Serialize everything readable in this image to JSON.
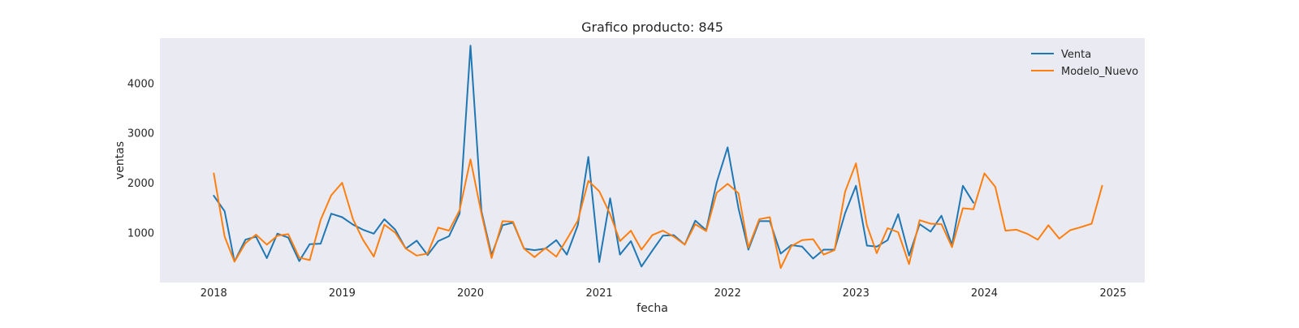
{
  "chart_data": {
    "type": "line",
    "title": "Grafico producto: 845",
    "xlabel": "fecha",
    "ylabel": "ventas",
    "grid": false,
    "legend_position": "top-right",
    "background_color": "#eaeaf2",
    "xlim": [
      "2017-08-01",
      "2025-04-01"
    ],
    "ylim": [
      0,
      4900
    ],
    "x_ticks": [
      "2018-01-01",
      "2019-01-01",
      "2020-01-01",
      "2021-01-01",
      "2022-01-01",
      "2023-01-01",
      "2024-01-01",
      "2025-01-01"
    ],
    "x_tick_labels": [
      "2018",
      "2019",
      "2020",
      "2021",
      "2022",
      "2023",
      "2024",
      "2025"
    ],
    "y_ticks": [
      1000,
      2000,
      3000,
      4000
    ],
    "y_tick_labels": [
      "1000",
      "2000",
      "3000",
      "4000"
    ],
    "start": "2018-01",
    "series": [
      {
        "name": "Venta",
        "color": "#1f77b4",
        "values": [
          1740,
          1430,
          420,
          860,
          920,
          490,
          980,
          900,
          430,
          770,
          780,
          1380,
          1310,
          1160,
          1060,
          980,
          1270,
          1060,
          680,
          840,
          550,
          830,
          930,
          1380,
          4750,
          1430,
          550,
          1150,
          1200,
          680,
          650,
          680,
          850,
          560,
          1150,
          2520,
          410,
          1690,
          560,
          830,
          320,
          640,
          940,
          950,
          760,
          1240,
          1050,
          2010,
          2710,
          1490,
          660,
          1230,
          1230,
          580,
          750,
          720,
          480,
          660,
          660,
          1390,
          1940,
          740,
          720,
          850,
          1370,
          540,
          1170,
          1020,
          1340,
          750,
          1940,
          1600
        ]
      },
      {
        "name": "Modelo_Nuevo",
        "color": "#ff7f0e",
        "values": [
          2190,
          920,
          420,
          790,
          960,
          760,
          940,
          970,
          500,
          450,
          1260,
          1750,
          2000,
          1270,
          860,
          520,
          1160,
          1000,
          680,
          540,
          580,
          1100,
          1040,
          1450,
          2470,
          1380,
          490,
          1230,
          1220,
          680,
          510,
          690,
          520,
          870,
          1240,
          2040,
          1830,
          1370,
          830,
          1040,
          660,
          950,
          1040,
          920,
          760,
          1170,
          1030,
          1800,
          1980,
          1790,
          700,
          1270,
          1310,
          290,
          730,
          850,
          870,
          560,
          650,
          1820,
          2390,
          1150,
          590,
          1090,
          1010,
          370,
          1250,
          1180,
          1170,
          710,
          1490,
          1470,
          2190,
          1920,
          1040,
          1060,
          980,
          860,
          1150,
          880,
          1050,
          1110,
          1180,
          1940
        ]
      }
    ]
  }
}
